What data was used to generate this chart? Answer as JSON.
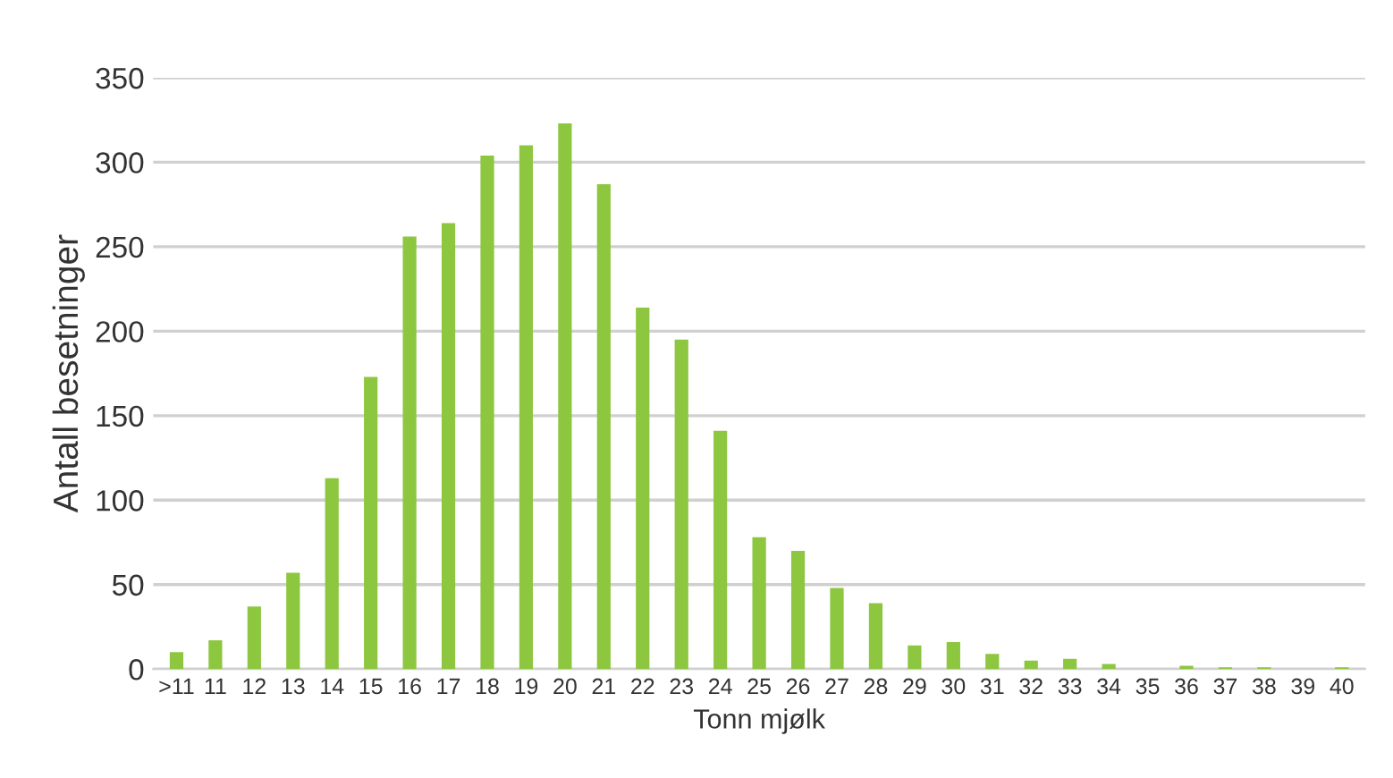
{
  "chart_data": {
    "type": "bar",
    "xlabel": "Tonn mjølk",
    "ylabel": "Antall besetninger",
    "categories": [
      ">11",
      "11",
      "12",
      "13",
      "14",
      "15",
      "16",
      "17",
      "18",
      "19",
      "20",
      "21",
      "22",
      "23",
      "24",
      "25",
      "26",
      "27",
      "28",
      "29",
      "30",
      "31",
      "32",
      "33",
      "34",
      "35",
      "36",
      "37",
      "38",
      "39",
      "40"
    ],
    "values": [
      10,
      17,
      37,
      57,
      113,
      173,
      256,
      264,
      304,
      310,
      323,
      287,
      214,
      195,
      141,
      78,
      70,
      48,
      39,
      14,
      16,
      9,
      5,
      6,
      3,
      0,
      2,
      1,
      1,
      0,
      1
    ],
    "color": "#8dc63f",
    "ylim": [
      0,
      350
    ],
    "yticks": [
      0,
      50,
      100,
      150,
      200,
      250,
      300,
      350
    ],
    "grid": "y"
  }
}
